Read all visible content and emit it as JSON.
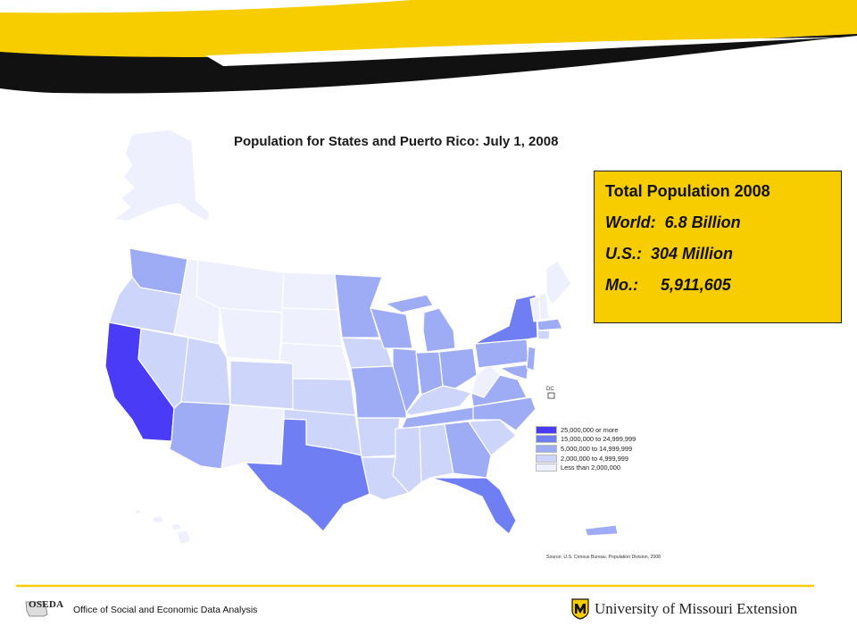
{
  "map": {
    "title": "Population for States and Puerto Rico: July 1, 2008",
    "legend": [
      {
        "label": "25,000,000 or more",
        "color": "#4a3cf6"
      },
      {
        "label": "15,000,000 to 24,999,999",
        "color": "#6f7ef2"
      },
      {
        "label": "5,000,000 to 14,999,999",
        "color": "#9eabf5"
      },
      {
        "label": "2,000,000 to 4,999,999",
        "color": "#cdd5fa"
      },
      {
        "label": "Less than 2,000,000",
        "color": "#eef1fd"
      }
    ],
    "source": "Source: U.S. Census Bureau, Population Division, 2008",
    "dc_label": "DC"
  },
  "info_box": {
    "heading": "Total Population 2008",
    "world": "World:  6.8 Billion",
    "us": "U.S.:  304 Million",
    "mo": "Mo.:     5,911,605"
  },
  "footer": {
    "oseda_logo_text": "OSEDA",
    "office_name": "Office of Social and Economic Data Analysis",
    "university": "University of Missouri Extension"
  },
  "colors": {
    "banner_black": "#111111",
    "banner_gold": "#f7cd00",
    "footer_rule": "#f7cd00",
    "state_border": "#ffffff"
  }
}
